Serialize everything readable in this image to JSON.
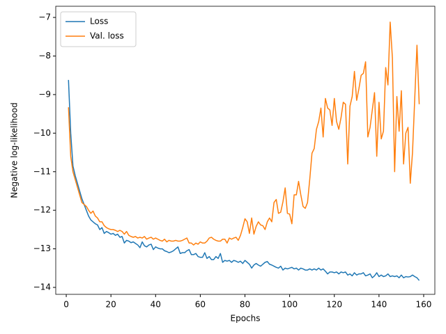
{
  "chart_data": {
    "type": "line",
    "xlabel": "Epochs",
    "ylabel": "Negative log-likelihood",
    "x": [
      1,
      2,
      3,
      4,
      5,
      6,
      7,
      8,
      9,
      10,
      11,
      12,
      13,
      14,
      15,
      16,
      17,
      18,
      19,
      20,
      21,
      22,
      23,
      24,
      25,
      26,
      27,
      28,
      29,
      30,
      31,
      32,
      33,
      34,
      35,
      36,
      37,
      38,
      39,
      40,
      41,
      42,
      43,
      44,
      45,
      46,
      47,
      48,
      49,
      50,
      51,
      52,
      53,
      54,
      55,
      56,
      57,
      58,
      59,
      60,
      61,
      62,
      63,
      64,
      65,
      66,
      67,
      68,
      69,
      70,
      71,
      72,
      73,
      74,
      75,
      76,
      77,
      78,
      79,
      80,
      81,
      82,
      83,
      84,
      85,
      86,
      87,
      88,
      89,
      90,
      91,
      92,
      93,
      94,
      95,
      96,
      97,
      98,
      99,
      100,
      101,
      102,
      103,
      104,
      105,
      106,
      107,
      108,
      109,
      110,
      111,
      112,
      113,
      114,
      115,
      116,
      117,
      118,
      119,
      120,
      121,
      122,
      123,
      124,
      125,
      126,
      127,
      128,
      129,
      130,
      131,
      132,
      133,
      134,
      135,
      136,
      137,
      138,
      139,
      140,
      141,
      142,
      143,
      144,
      145,
      146,
      147,
      148,
      149,
      150,
      151,
      152,
      153,
      154,
      155,
      156,
      157,
      158
    ],
    "series": [
      {
        "name": "Loss",
        "color": "#1f77b4",
        "values": [
          -8.62,
          -10.0,
          -10.85,
          -11.1,
          -11.3,
          -11.5,
          -11.7,
          -11.85,
          -12.0,
          -12.15,
          -12.25,
          -12.3,
          -12.35,
          -12.38,
          -12.5,
          -12.45,
          -12.6,
          -12.55,
          -12.58,
          -12.62,
          -12.6,
          -12.65,
          -12.62,
          -12.7,
          -12.68,
          -12.85,
          -12.78,
          -12.8,
          -12.84,
          -12.82,
          -12.86,
          -12.9,
          -12.97,
          -12.82,
          -12.92,
          -12.95,
          -12.9,
          -12.88,
          -13.02,
          -12.95,
          -12.98,
          -13.0,
          -13.0,
          -13.05,
          -13.07,
          -13.1,
          -13.08,
          -13.05,
          -13.0,
          -12.95,
          -13.12,
          -13.1,
          -13.1,
          -13.05,
          -13.02,
          -13.15,
          -13.15,
          -13.12,
          -13.2,
          -13.22,
          -13.22,
          -13.1,
          -13.25,
          -13.2,
          -13.28,
          -13.28,
          -13.2,
          -13.25,
          -13.12,
          -13.35,
          -13.3,
          -13.32,
          -13.3,
          -13.35,
          -13.3,
          -13.32,
          -13.35,
          -13.32,
          -13.38,
          -13.3,
          -13.35,
          -13.4,
          -13.5,
          -13.42,
          -13.38,
          -13.42,
          -13.45,
          -13.4,
          -13.35,
          -13.33,
          -13.4,
          -13.42,
          -13.45,
          -13.48,
          -13.5,
          -13.45,
          -13.55,
          -13.5,
          -13.52,
          -13.5,
          -13.48,
          -13.52,
          -13.5,
          -13.55,
          -13.5,
          -13.52,
          -13.55,
          -13.55,
          -13.52,
          -13.55,
          -13.52,
          -13.55,
          -13.5,
          -13.55,
          -13.52,
          -13.58,
          -13.65,
          -13.6,
          -13.6,
          -13.62,
          -13.6,
          -13.65,
          -13.6,
          -13.62,
          -13.6,
          -13.68,
          -13.65,
          -13.7,
          -13.62,
          -13.68,
          -13.65,
          -13.65,
          -13.62,
          -13.7,
          -13.68,
          -13.65,
          -13.75,
          -13.7,
          -13.62,
          -13.72,
          -13.68,
          -13.72,
          -13.7,
          -13.65,
          -13.72,
          -13.7,
          -13.72,
          -13.7,
          -13.75,
          -13.68,
          -13.75,
          -13.72,
          -13.73,
          -13.72,
          -13.68,
          -13.72,
          -13.75,
          -13.82
        ]
      },
      {
        "name": "Val. loss",
        "color": "#ff7f0e",
        "values": [
          -9.33,
          -10.6,
          -11.0,
          -11.2,
          -11.4,
          -11.6,
          -11.8,
          -11.85,
          -11.9,
          -12.0,
          -12.08,
          -12.02,
          -12.15,
          -12.2,
          -12.3,
          -12.3,
          -12.4,
          -12.45,
          -12.48,
          -12.5,
          -12.5,
          -12.52,
          -12.55,
          -12.52,
          -12.55,
          -12.62,
          -12.55,
          -12.65,
          -12.68,
          -12.7,
          -12.68,
          -12.72,
          -12.7,
          -12.72,
          -12.68,
          -12.75,
          -12.72,
          -12.7,
          -12.75,
          -12.72,
          -12.75,
          -12.78,
          -12.8,
          -12.75,
          -12.82,
          -12.78,
          -12.8,
          -12.8,
          -12.78,
          -12.8,
          -12.8,
          -12.78,
          -12.75,
          -12.72,
          -12.85,
          -12.85,
          -12.9,
          -12.85,
          -12.88,
          -12.82,
          -12.85,
          -12.85,
          -12.8,
          -12.72,
          -12.7,
          -12.75,
          -12.78,
          -12.8,
          -12.8,
          -12.75,
          -12.75,
          -12.85,
          -12.72,
          -12.75,
          -12.72,
          -12.7,
          -12.78,
          -12.65,
          -12.45,
          -12.22,
          -12.3,
          -12.6,
          -12.2,
          -12.62,
          -12.42,
          -12.3,
          -12.38,
          -12.4,
          -12.5,
          -12.3,
          -12.2,
          -12.3,
          -11.8,
          -11.72,
          -12.08,
          -12.05,
          -11.78,
          -11.42,
          -12.08,
          -12.1,
          -12.35,
          -11.6,
          -11.6,
          -11.25,
          -11.6,
          -11.9,
          -11.95,
          -11.8,
          -11.2,
          -10.52,
          -10.4,
          -9.9,
          -9.7,
          -9.35,
          -10.1,
          -9.1,
          -9.35,
          -9.4,
          -9.8,
          -9.1,
          -9.7,
          -9.9,
          -9.6,
          -9.2,
          -9.25,
          -10.8,
          -9.3,
          -9.05,
          -8.4,
          -9.15,
          -8.85,
          -8.5,
          -8.45,
          -8.15,
          -10.1,
          -9.85,
          -9.4,
          -8.95,
          -10.6,
          -9.2,
          -10.15,
          -9.95,
          -8.3,
          -8.75,
          -7.12,
          -8.05,
          -11.0,
          -9.05,
          -9.95,
          -8.9,
          -10.8,
          -10.0,
          -9.85,
          -11.3,
          -10.5,
          -9.1,
          -7.72,
          -9.25
        ]
      }
    ],
    "xlim": [
      -4.7,
      165
    ],
    "ylim": [
      -14.18,
      -6.71
    ],
    "xticks": [
      0,
      20,
      40,
      60,
      80,
      100,
      120,
      140,
      160
    ],
    "yticks": [
      {
        "value": -14,
        "label": "−14"
      },
      {
        "value": -13,
        "label": "−13"
      },
      {
        "value": -12,
        "label": "−12"
      },
      {
        "value": -11,
        "label": "−11"
      },
      {
        "value": -10,
        "label": "−10"
      },
      {
        "value": -9,
        "label": "−9"
      },
      {
        "value": -8,
        "label": "−8"
      },
      {
        "value": -7,
        "label": "−7"
      }
    ],
    "legend": "upper left",
    "grid": false
  }
}
